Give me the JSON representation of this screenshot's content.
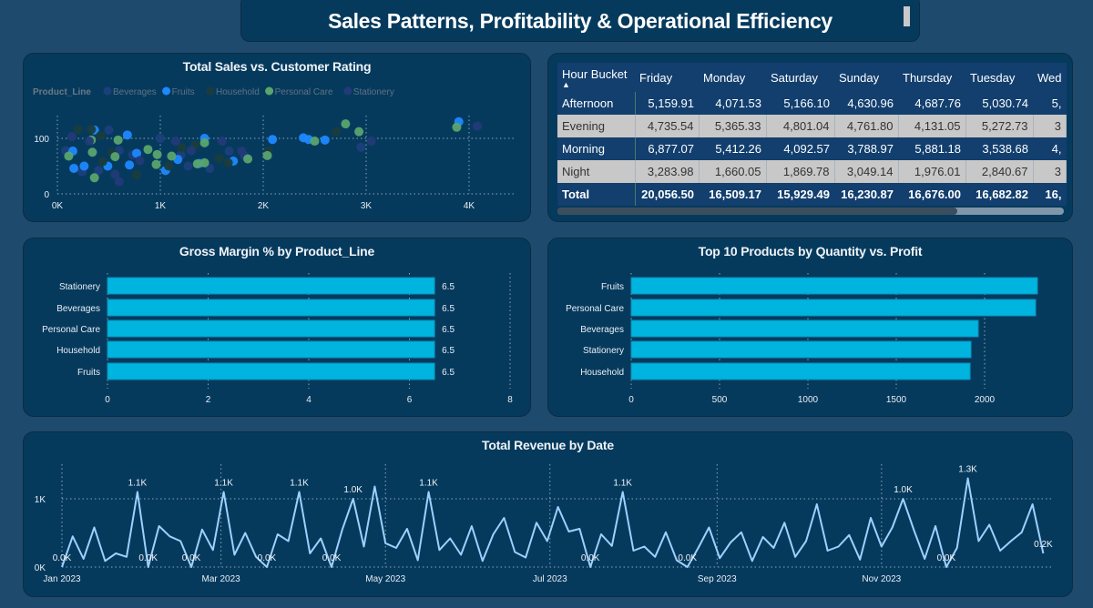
{
  "header": {
    "title": "Sales Patterns, Profitability & Operational Efficiency"
  },
  "colors": {
    "background": "#1d4a6d",
    "panel": "#063a5d",
    "bar": "#00b4e0",
    "line": "#9fd0ff",
    "table_header": "#123f6e",
    "table_alt_row": "#c8c8c8"
  },
  "table": {
    "columns": [
      "Hour Bucket",
      "Friday",
      "Monday",
      "Saturday",
      "Sunday",
      "Thursday",
      "Tuesday",
      "Wed"
    ],
    "sort_indicator": "▲",
    "rows": [
      {
        "label": "Afternoon",
        "values": [
          "5,159.91",
          "4,071.53",
          "5,166.10",
          "4,630.96",
          "4,687.76",
          "5,030.74",
          "5,"
        ]
      },
      {
        "label": "Evening",
        "values": [
          "4,735.54",
          "5,365.33",
          "4,801.04",
          "4,761.80",
          "4,131.05",
          "5,272.73",
          "3"
        ]
      },
      {
        "label": "Morning",
        "values": [
          "6,877.07",
          "5,412.26",
          "4,092.57",
          "3,788.97",
          "5,881.18",
          "3,538.68",
          "4,"
        ]
      },
      {
        "label": "Night",
        "values": [
          "3,283.98",
          "1,660.05",
          "1,869.78",
          "3,049.14",
          "1,976.01",
          "2,840.67",
          "3"
        ]
      }
    ],
    "total": {
      "label": "Total",
      "values": [
        "20,056.50",
        "16,509.17",
        "15,929.49",
        "16,230.87",
        "16,676.00",
        "16,682.82",
        "16,"
      ]
    },
    "scroll_position": 0.79
  },
  "chart_data": [
    {
      "type": "scatter",
      "title": "Total Sales vs. Customer Rating",
      "legend_title": "Product_Line",
      "legend_position": "top-left",
      "xticks": [
        "0K",
        "1K",
        "2K",
        "3K",
        "4K"
      ],
      "yticks": [
        "0",
        "100"
      ],
      "xlim": [
        0,
        4500
      ],
      "ylim": [
        0,
        150
      ],
      "grid": true,
      "series": [
        {
          "name": "Beverages",
          "color": "#1c3f7c",
          "points": [
            [
              80,
              78
            ],
            [
              240,
              40
            ],
            [
              400,
              42
            ],
            [
              500,
              115
            ],
            [
              600,
              78
            ],
            [
              730,
              70
            ],
            [
              1000,
              100
            ],
            [
              1200,
              70
            ],
            [
              1270,
              50
            ],
            [
              1480,
              46
            ],
            [
              1670,
              77
            ],
            [
              1820,
              68
            ],
            [
              2950,
              84
            ]
          ]
        },
        {
          "name": "Fruits",
          "color": "#1e88ff",
          "points": [
            [
              150,
              77
            ],
            [
              160,
              46
            ],
            [
              260,
              50
            ],
            [
              360,
              115
            ],
            [
              490,
              50
            ],
            [
              680,
              106
            ],
            [
              700,
              52
            ],
            [
              770,
              73
            ],
            [
              1050,
              42
            ],
            [
              1170,
              62
            ],
            [
              1380,
              55
            ],
            [
              1430,
              100
            ],
            [
              1710,
              59
            ],
            [
              2090,
              98
            ],
            [
              2390,
              101
            ],
            [
              2440,
              98
            ],
            [
              2600,
              97
            ],
            [
              3900,
              130
            ]
          ]
        },
        {
          "name": "Household",
          "color": "#1a3d3c",
          "points": [
            [
              200,
              116
            ],
            [
              330,
              116
            ],
            [
              420,
              105
            ],
            [
              440,
              58
            ],
            [
              530,
              75
            ],
            [
              770,
              34
            ],
            [
              1080,
              50
            ],
            [
              1210,
              83
            ],
            [
              1340,
              88
            ],
            [
              1570,
              64
            ],
            [
              1660,
              56
            ],
            [
              2050,
              77
            ],
            [
              2710,
              112
            ]
          ]
        },
        {
          "name": "Personal Care",
          "color": "#5aa46e",
          "points": [
            [
              110,
              68
            ],
            [
              330,
              97
            ],
            [
              340,
              75
            ],
            [
              360,
              29
            ],
            [
              560,
              67
            ],
            [
              590,
              97
            ],
            [
              880,
              80
            ],
            [
              960,
              53
            ],
            [
              970,
              71
            ],
            [
              1110,
              68
            ],
            [
              1360,
              54
            ],
            [
              1430,
              56
            ],
            [
              1430,
              92
            ],
            [
              1850,
              63
            ],
            [
              2040,
              69
            ],
            [
              2500,
              95
            ],
            [
              2800,
              126
            ],
            [
              2930,
              112
            ],
            [
              3880,
              120
            ]
          ]
        },
        {
          "name": "Stationery",
          "color": "#213a78",
          "points": [
            [
              140,
              103
            ],
            [
              310,
              95
            ],
            [
              560,
              35
            ],
            [
              600,
              22
            ],
            [
              800,
              60
            ],
            [
              1150,
              95
            ],
            [
              1300,
              78
            ],
            [
              1600,
              95
            ],
            [
              1790,
              77
            ],
            [
              3050,
              95
            ],
            [
              4080,
              122
            ]
          ]
        }
      ]
    },
    {
      "type": "bar",
      "orientation": "horizontal",
      "title": "Gross Margin % by Product_Line",
      "categories": [
        "Stationery",
        "Beverages",
        "Personal Care",
        "Household",
        "Fruits"
      ],
      "values": [
        6.5,
        6.5,
        6.5,
        6.5,
        6.5
      ],
      "data_labels": [
        "6.5",
        "6.5",
        "6.5",
        "6.5",
        "6.5"
      ],
      "xticks": [
        "0",
        "2",
        "4",
        "6",
        "8"
      ],
      "xlim": [
        0,
        8
      ],
      "grid": true
    },
    {
      "type": "bar",
      "orientation": "horizontal",
      "title": "Top 10 Products by Quantity vs. Profit",
      "categories": [
        "Fruits",
        "Personal Care",
        "Beverages",
        "Stationery",
        "Household"
      ],
      "values": [
        2299,
        2289,
        1964,
        1923,
        1918
      ],
      "xticks": [
        "0",
        "500",
        "1000",
        "1500",
        "2000"
      ],
      "xlim": [
        0,
        2350
      ],
      "grid": true
    },
    {
      "type": "line",
      "title": "Total Revenue by Date",
      "yticks": [
        "0K",
        "1K"
      ],
      "xticks": [
        {
          "date": "2023-01-01",
          "label": "Jan 2023"
        },
        {
          "date": "2023-03-01",
          "label": "Mar 2023"
        },
        {
          "date": "2023-05-01",
          "label": "May 2023"
        },
        {
          "date": "2023-07-01",
          "label": "Jul 2023"
        },
        {
          "date": "2023-09-01",
          "label": "Sep 2023"
        },
        {
          "date": "2023-11-01",
          "label": "Nov 2023"
        }
      ],
      "ylim": [
        0,
        1400
      ],
      "grid": true,
      "x": [
        "2023-01-01",
        "2023-01-05",
        "2023-01-09",
        "2023-01-13",
        "2023-01-17",
        "2023-01-21",
        "2023-01-25",
        "2023-01-29",
        "2023-02-02",
        "2023-02-06",
        "2023-02-10",
        "2023-02-14",
        "2023-02-18",
        "2023-02-22",
        "2023-02-26",
        "2023-03-02",
        "2023-03-06",
        "2023-03-10",
        "2023-03-14",
        "2023-03-18",
        "2023-03-22",
        "2023-03-26",
        "2023-03-30",
        "2023-04-03",
        "2023-04-07",
        "2023-04-11",
        "2023-04-15",
        "2023-04-19",
        "2023-04-23",
        "2023-04-27",
        "2023-05-01",
        "2023-05-05",
        "2023-05-09",
        "2023-05-13",
        "2023-05-17",
        "2023-05-21",
        "2023-05-25",
        "2023-05-29",
        "2023-06-02",
        "2023-06-06",
        "2023-06-10",
        "2023-06-14",
        "2023-06-18",
        "2023-06-22",
        "2023-06-26",
        "2023-06-30",
        "2023-07-04",
        "2023-07-08",
        "2023-07-12",
        "2023-07-16",
        "2023-07-20",
        "2023-07-24",
        "2023-07-28",
        "2023-08-01",
        "2023-08-05",
        "2023-08-09",
        "2023-08-13",
        "2023-08-17",
        "2023-08-21",
        "2023-08-25",
        "2023-08-29",
        "2023-09-02",
        "2023-09-06",
        "2023-09-10",
        "2023-09-14",
        "2023-09-18",
        "2023-09-22",
        "2023-09-26",
        "2023-09-30",
        "2023-10-04",
        "2023-10-08",
        "2023-10-12",
        "2023-10-16",
        "2023-10-20",
        "2023-10-24",
        "2023-10-28",
        "2023-11-01",
        "2023-11-05",
        "2023-11-09",
        "2023-11-13",
        "2023-11-17",
        "2023-11-21",
        "2023-11-25",
        "2023-11-29",
        "2023-12-03",
        "2023-12-07",
        "2023-12-11",
        "2023-12-15",
        "2023-12-19",
        "2023-12-23",
        "2023-12-27",
        "2023-12-31"
      ],
      "y": [
        0,
        450,
        120,
        580,
        90,
        200,
        150,
        1100,
        0,
        600,
        450,
        380,
        0,
        550,
        250,
        1100,
        180,
        500,
        150,
        0,
        480,
        380,
        1100,
        200,
        420,
        0,
        550,
        1000,
        300,
        1180,
        350,
        280,
        560,
        100,
        1100,
        250,
        420,
        180,
        600,
        90,
        480,
        720,
        220,
        140,
        650,
        380,
        880,
        520,
        560,
        0,
        480,
        310,
        1100,
        240,
        300,
        150,
        510,
        100,
        0,
        280,
        580,
        130,
        360,
        510,
        90,
        440,
        280,
        650,
        150,
        380,
        920,
        240,
        300,
        470,
        110,
        720,
        300,
        580,
        1000,
        540,
        120,
        600,
        0,
        280,
        1300,
        380,
        620,
        240,
        380,
        510,
        920,
        200
      ],
      "data_labels": [
        {
          "date": "2023-01-01",
          "label": "0.0K"
        },
        {
          "date": "2023-01-29",
          "label": "1.1K"
        },
        {
          "date": "2023-02-02",
          "label": "0.0K"
        },
        {
          "date": "2023-02-18",
          "label": "0.0K"
        },
        {
          "date": "2023-03-02",
          "label": "1.1K"
        },
        {
          "date": "2023-03-18",
          "label": "0.0K"
        },
        {
          "date": "2023-03-30",
          "label": "1.1K"
        },
        {
          "date": "2023-04-11",
          "label": "0.0K"
        },
        {
          "date": "2023-04-19",
          "label": "1.0K"
        },
        {
          "date": "2023-05-17",
          "label": "1.1K"
        },
        {
          "date": "2023-07-16",
          "label": "0.0K"
        },
        {
          "date": "2023-07-28",
          "label": "1.1K"
        },
        {
          "date": "2023-08-21",
          "label": "0.0K"
        },
        {
          "date": "2023-11-09",
          "label": "1.0K"
        },
        {
          "date": "2023-11-25",
          "label": "0.0K"
        },
        {
          "date": "2023-12-03",
          "label": "1.3K"
        },
        {
          "date": "2023-12-31",
          "label": "0.2K"
        }
      ]
    }
  ]
}
